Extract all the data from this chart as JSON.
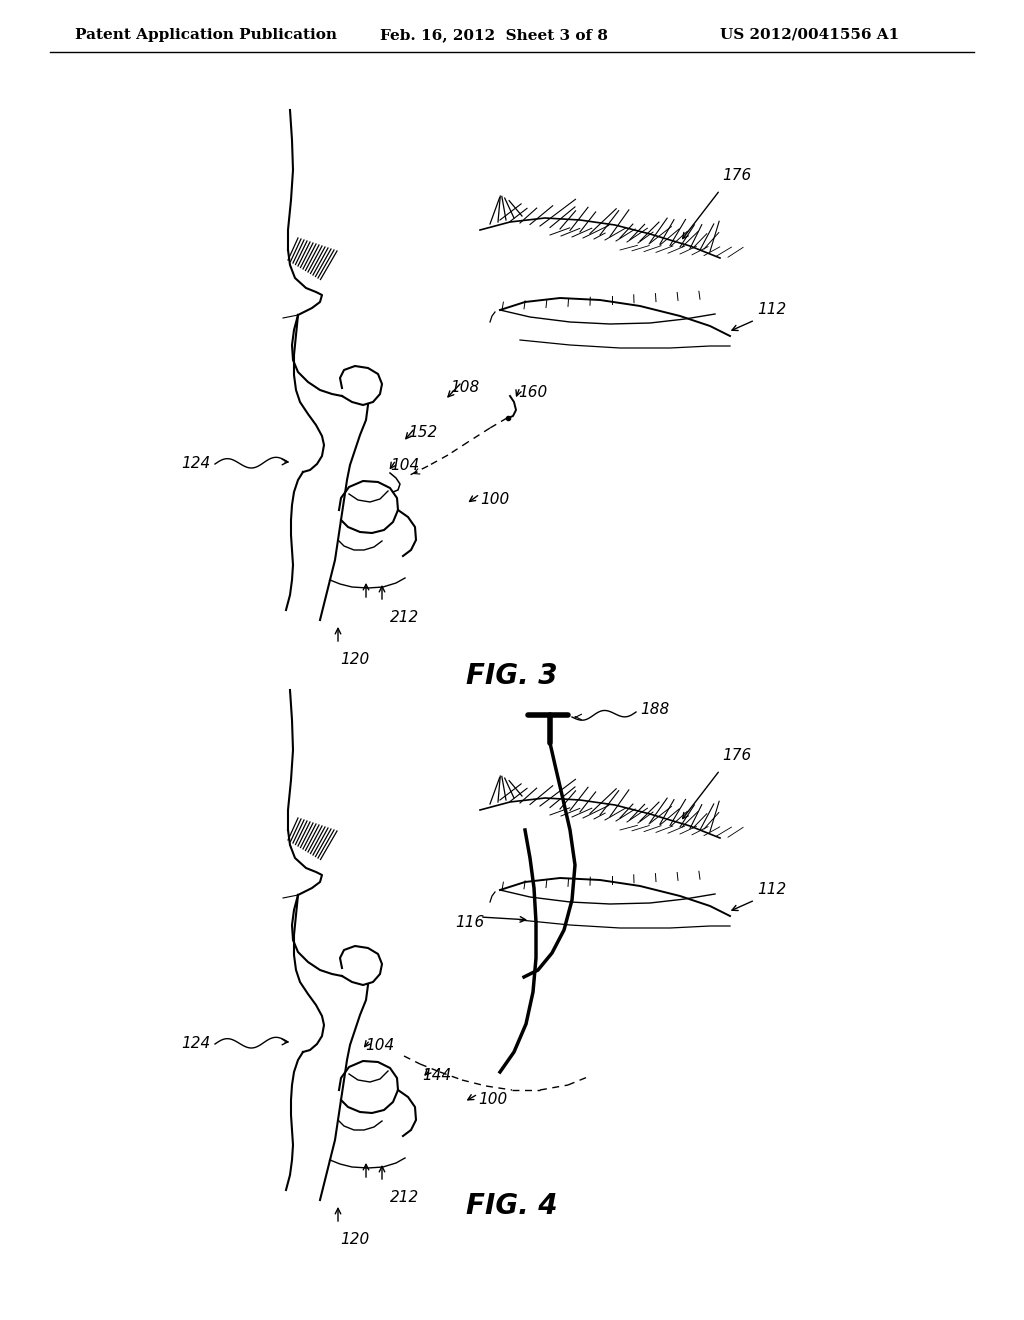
{
  "background_color": "#ffffff",
  "header_left": "Patent Application Publication",
  "header_center": "Feb. 16, 2012  Sheet 3 of 8",
  "header_right": "US 2012/0041556 A1",
  "fig3_label": "FIG. 3",
  "fig4_label": "FIG. 4",
  "line_color": "#000000",
  "text_color": "#000000",
  "label_fontsize": 11,
  "header_fontsize": 11,
  "fig_label_fontsize": 20
}
